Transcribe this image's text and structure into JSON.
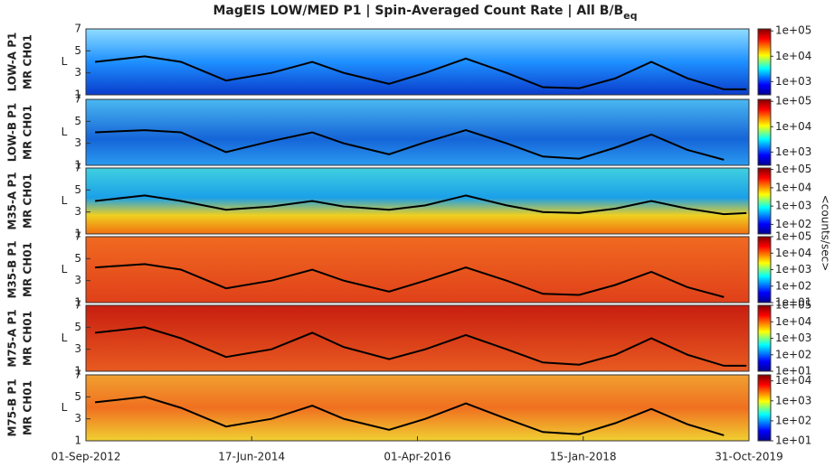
{
  "title": "MagEIS LOW/MED P1 | Spin-Averaged Count Rate |  All B/B",
  "title_subscript": "eq",
  "colorbar_label": "<counts/sec>",
  "chart_data": [
    {
      "type": "spectrogram",
      "label": [
        "LOW-A P1",
        "MR CH01"
      ],
      "label_color": "#f08c1e",
      "ylabel": "L",
      "ylim": [
        1,
        7
      ],
      "yticks": [
        1,
        3,
        5,
        7
      ],
      "xlim": [
        "2012-09-01",
        "2019-10-31"
      ],
      "x": [
        "2012-10-07",
        "2013-04-21",
        "2013-09-11",
        "2014-03-08",
        "2014-09-03",
        "2015-02-11",
        "2015-06-15",
        "2015-12-11",
        "2016-05-02",
        "2016-10-09",
        "2017-03-19",
        "2017-08-09",
        "2017-12-30",
        "2018-05-21",
        "2018-10-11",
        "2019-03-03",
        "2019-07-24",
        "2019-10-21"
      ],
      "values": [
        4.0,
        4.5,
        4.0,
        2.3,
        3.0,
        4.0,
        3.0,
        2.0,
        3.0,
        4.3,
        3.0,
        1.7,
        1.6,
        2.5,
        4.0,
        2.5,
        1.5,
        1.5
      ],
      "color": "#000000",
      "clim": [
        300,
        120000
      ],
      "cticks": [
        {
          "value": 1000,
          "label": "1e+03"
        },
        {
          "value": 10000,
          "label": "1e+04"
        },
        {
          "value": 100000,
          "label": "1e+05"
        }
      ]
    },
    {
      "type": "spectrogram",
      "label": [
        "LOW-B P1",
        "MR CH01"
      ],
      "label_color": "#f08c1e",
      "ylabel": "L",
      "ylim": [
        1,
        7
      ],
      "yticks": [
        1,
        3,
        5,
        7
      ],
      "xlim": [
        "2012-09-01",
        "2019-10-31"
      ],
      "x": [
        "2012-10-07",
        "2013-04-21",
        "2013-09-11",
        "2014-03-08",
        "2014-09-03",
        "2015-02-11",
        "2015-06-15",
        "2015-12-11",
        "2016-05-02",
        "2016-10-09",
        "2017-03-19",
        "2017-08-09",
        "2017-12-30",
        "2018-05-21",
        "2018-10-11",
        "2019-03-03",
        "2019-07-24",
        "2019-10-21"
      ],
      "values": [
        4.0,
        4.2,
        4.0,
        2.2,
        3.2,
        4.0,
        3.0,
        2.0,
        3.1,
        4.2,
        3.0,
        1.8,
        1.6,
        2.6,
        3.8,
        2.4,
        1.5,
        null
      ],
      "color": "#000000",
      "clim": [
        300,
        120000
      ],
      "cticks": [
        {
          "value": 1000,
          "label": "1e+03"
        },
        {
          "value": 10000,
          "label": "1e+04"
        },
        {
          "value": 100000,
          "label": "1e+05"
        }
      ]
    },
    {
      "type": "spectrogram",
      "label": [
        "M35-A P1",
        "MR CH01"
      ],
      "label_color": "#e020e0",
      "ylabel": "L",
      "ylim": [
        1,
        7
      ],
      "yticks": [
        1,
        3,
        5,
        7
      ],
      "xlim": [
        "2012-09-01",
        "2019-10-31"
      ],
      "x": [
        "2012-10-07",
        "2013-04-21",
        "2013-09-11",
        "2014-03-08",
        "2014-09-03",
        "2015-02-11",
        "2015-06-15",
        "2015-12-11",
        "2016-05-02",
        "2016-10-09",
        "2017-03-19",
        "2017-08-09",
        "2017-12-30",
        "2018-05-21",
        "2018-10-11",
        "2019-03-03",
        "2019-07-24",
        "2019-10-21"
      ],
      "values": [
        4.0,
        4.5,
        4.0,
        3.2,
        3.5,
        4.0,
        3.5,
        3.2,
        3.6,
        4.5,
        3.6,
        3.0,
        2.9,
        3.3,
        4.0,
        3.3,
        2.8,
        2.9
      ],
      "color": "#000000",
      "clim": [
        30,
        120000
      ],
      "cticks": [
        {
          "value": 100,
          "label": "1e+02"
        },
        {
          "value": 1000,
          "label": "1e+03"
        },
        {
          "value": 10000,
          "label": "1e+04"
        },
        {
          "value": 100000,
          "label": "1e+05"
        }
      ]
    },
    {
      "type": "spectrogram",
      "label": [
        "M35-B P1",
        "MR CH01"
      ],
      "label_color": "#e020e0",
      "ylabel": "L",
      "ylim": [
        1,
        7
      ],
      "yticks": [
        1,
        3,
        5,
        7
      ],
      "xlim": [
        "2012-09-01",
        "2019-10-31"
      ],
      "x": [
        "2012-10-07",
        "2013-04-21",
        "2013-09-11",
        "2014-03-08",
        "2014-09-03",
        "2015-02-11",
        "2015-06-15",
        "2015-12-11",
        "2016-05-02",
        "2016-10-09",
        "2017-03-19",
        "2017-08-09",
        "2017-12-30",
        "2018-05-21",
        "2018-10-11",
        "2019-03-03",
        "2019-07-24",
        "2019-10-21"
      ],
      "values": [
        4.2,
        4.5,
        4.0,
        2.3,
        3.0,
        4.0,
        3.0,
        2.0,
        3.0,
        4.2,
        3.0,
        1.8,
        1.7,
        2.6,
        3.8,
        2.4,
        1.5,
        null
      ],
      "color": "#000000",
      "clim": [
        10,
        100000
      ],
      "cticks": [
        {
          "value": 10,
          "label": "1e+01"
        },
        {
          "value": 100,
          "label": "1e+02"
        },
        {
          "value": 1000,
          "label": "1e+03"
        },
        {
          "value": 10000,
          "label": "1e+04"
        },
        {
          "value": 100000,
          "label": "1e+05"
        }
      ]
    },
    {
      "type": "spectrogram",
      "label": [
        "M75-A P1",
        "MR CH01"
      ],
      "label_color": "#1a1adc",
      "ylabel": "L",
      "ylim": [
        1,
        7
      ],
      "yticks": [
        1,
        3,
        5,
        7
      ],
      "xlim": [
        "2012-09-01",
        "2019-10-31"
      ],
      "x": [
        "2012-10-07",
        "2013-04-21",
        "2013-09-11",
        "2014-03-08",
        "2014-09-03",
        "2015-02-11",
        "2015-06-15",
        "2015-12-11",
        "2016-05-02",
        "2016-10-09",
        "2017-03-19",
        "2017-08-09",
        "2017-12-30",
        "2018-05-21",
        "2018-10-11",
        "2019-03-03",
        "2019-07-24",
        "2019-10-21"
      ],
      "values": [
        4.5,
        5.0,
        4.0,
        2.3,
        3.0,
        4.5,
        3.2,
        2.1,
        3.0,
        4.3,
        3.0,
        1.8,
        1.6,
        2.5,
        4.0,
        2.5,
        1.5,
        1.5
      ],
      "color": "#000000",
      "clim": [
        10,
        100000
      ],
      "cticks": [
        {
          "value": 10,
          "label": "1e+01"
        },
        {
          "value": 100,
          "label": "1e+02"
        },
        {
          "value": 1000,
          "label": "1e+03"
        },
        {
          "value": 10000,
          "label": "1e+04"
        },
        {
          "value": 100000,
          "label": "1e+05"
        }
      ]
    },
    {
      "type": "spectrogram",
      "label": [
        "M75-B P1",
        "MR CH01"
      ],
      "label_color": "#1a1adc",
      "ylabel": "L",
      "ylim": [
        1,
        7
      ],
      "yticks": [
        1,
        3,
        5,
        7
      ],
      "xlim": [
        "2012-09-01",
        "2019-10-31"
      ],
      "x": [
        "2012-10-07",
        "2013-04-21",
        "2013-09-11",
        "2014-03-08",
        "2014-09-03",
        "2015-02-11",
        "2015-06-15",
        "2015-12-11",
        "2016-05-02",
        "2016-10-09",
        "2017-03-19",
        "2017-08-09",
        "2017-12-30",
        "2018-05-21",
        "2018-10-11",
        "2019-03-03",
        "2019-07-24",
        "2019-10-21"
      ],
      "values": [
        4.5,
        5.0,
        4.0,
        2.3,
        3.0,
        4.2,
        3.0,
        2.0,
        3.0,
        4.4,
        3.0,
        1.8,
        1.6,
        2.6,
        3.9,
        2.5,
        1.5,
        null
      ],
      "color": "#000000",
      "clim": [
        10,
        20000
      ],
      "cticks": [
        {
          "value": 10,
          "label": "1e+01"
        },
        {
          "value": 100,
          "label": "1e+02"
        },
        {
          "value": 1000,
          "label": "1e+03"
        },
        {
          "value": 10000,
          "label": "1e+04"
        }
      ],
      "xticks": [
        {
          "value": "2012-09-01",
          "label": "01-Sep-2012"
        },
        {
          "value": "2014-06-17",
          "label": "17-Jun-2014"
        },
        {
          "value": "2016-04-01",
          "label": "01-Apr-2016"
        },
        {
          "value": "2018-01-15",
          "label": "15-Jan-2018"
        },
        {
          "value": "2019-10-31",
          "label": "31-Oct-2019"
        }
      ]
    }
  ]
}
